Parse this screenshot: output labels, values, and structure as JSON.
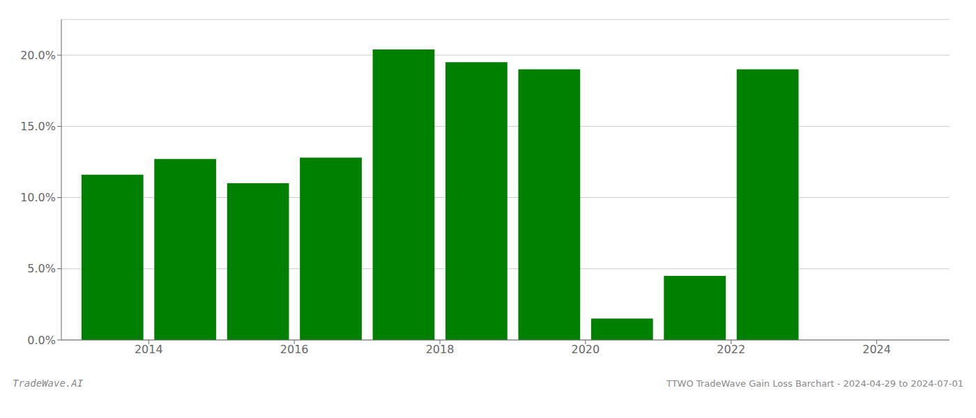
{
  "chart_data": {
    "type": "bar",
    "x": [
      2013.5,
      2014.5,
      2015.5,
      2016.5,
      2017.5,
      2018.5,
      2019.5,
      2020.5,
      2021.5,
      2022.5
    ],
    "values": [
      0.116,
      0.127,
      0.11,
      0.128,
      0.204,
      0.195,
      0.19,
      0.015,
      0.045,
      0.19
    ],
    "color": "#008000",
    "xlim": [
      2012.8,
      2025.0
    ],
    "xticks": [
      2014,
      2016,
      2018,
      2020,
      2022,
      2024
    ],
    "ylim": [
      0,
      0.225
    ],
    "yticks": [
      {
        "value": 0.0,
        "label": "0.0%"
      },
      {
        "value": 0.05,
        "label": "5.0%"
      },
      {
        "value": 0.1,
        "label": "10.0%"
      },
      {
        "value": 0.15,
        "label": "15.0%"
      },
      {
        "value": 0.2,
        "label": "20.0%"
      }
    ],
    "grid": true,
    "annotations": [
      "TradeWave.AI",
      "TTWO TradeWave Gain Loss Barchart - 2024-04-29 to 2024-07-01"
    ]
  }
}
